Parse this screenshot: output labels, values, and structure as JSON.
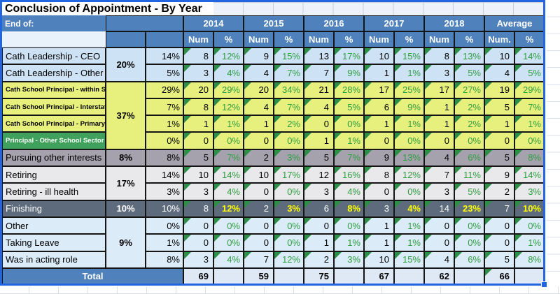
{
  "title": "Conclusion of Appointment -  By Year",
  "header": {
    "end_of_label": "End of:",
    "years": [
      "2014",
      "2015",
      "2016",
      "2017",
      "2018"
    ],
    "average_label": "Average",
    "num_label": "Num",
    "pct_label": "%",
    "avg_num_label": "Num.",
    "avg_pct_label": "%"
  },
  "groups": [
    {
      "pct": "20%",
      "start": 0,
      "span": 2,
      "style": "lightblue"
    },
    {
      "pct": "37%",
      "start": 2,
      "span": 4,
      "style": "yellow"
    },
    {
      "pct": "8%",
      "start": 6,
      "span": 1,
      "style": "gray"
    },
    {
      "pct": "17%",
      "start": 7,
      "span": 2,
      "style": "lightgray"
    },
    {
      "pct": "10%",
      "start": 9,
      "span": 1,
      "style": "dark"
    },
    {
      "pct": "9%",
      "start": 10,
      "span": 3,
      "style": "lightblue2"
    }
  ],
  "rows": [
    {
      "label": "Cath Leadership - CEO",
      "style": "lightblue",
      "row_pct": "14%",
      "values": [
        [
          "8",
          "12%"
        ],
        [
          "9",
          "15%"
        ],
        [
          "13",
          "17%"
        ],
        [
          "10",
          "15%"
        ],
        [
          "8",
          "13%"
        ],
        [
          "10",
          "14%"
        ]
      ]
    },
    {
      "label": "Cath Leadership - Other",
      "style": "lightblue",
      "row_pct": "5%",
      "values": [
        [
          "3",
          "4%"
        ],
        [
          "4",
          "7%"
        ],
        [
          "7",
          "9%"
        ],
        [
          "1",
          "1%"
        ],
        [
          "3",
          "5%"
        ],
        [
          "4",
          "5%"
        ]
      ]
    },
    {
      "label": "Cath School Principal - within State",
      "style": "yellow",
      "row_pct": "29%",
      "values": [
        [
          "20",
          "29%"
        ],
        [
          "20",
          "34%"
        ],
        [
          "21",
          "28%"
        ],
        [
          "17",
          "25%"
        ],
        [
          "17",
          "27%"
        ],
        [
          "19",
          "29%"
        ]
      ]
    },
    {
      "label": "Cath School Principal - Interstate",
      "style": "yellow",
      "row_pct": "7%",
      "values": [
        [
          "8",
          "12%"
        ],
        [
          "4",
          "7%"
        ],
        [
          "4",
          "5%"
        ],
        [
          "6",
          "9%"
        ],
        [
          "1",
          "2%"
        ],
        [
          "5",
          "7%"
        ]
      ]
    },
    {
      "label": "Cath School Principal - Primary",
      "style": "yellow",
      "row_pct": "1%",
      "values": [
        [
          "1",
          "1%"
        ],
        [
          "1",
          "2%"
        ],
        [
          "0",
          "0%"
        ],
        [
          "1",
          "1%"
        ],
        [
          "1",
          "2%"
        ],
        [
          "1",
          "1%"
        ]
      ]
    },
    {
      "label": "Principal - Other School Sector",
      "style": "green",
      "row_pct": "0%",
      "values": [
        [
          "0",
          "0%"
        ],
        [
          "0",
          "0%"
        ],
        [
          "1",
          "1%"
        ],
        [
          "0",
          "0%"
        ],
        [
          "0",
          "0%"
        ],
        [
          "0",
          "0%"
        ]
      ]
    },
    {
      "label": "Pursuing other interests",
      "style": "gray",
      "row_pct": "8%",
      "values": [
        [
          "5",
          "7%"
        ],
        [
          "2",
          "3%"
        ],
        [
          "5",
          "7%"
        ],
        [
          "9",
          "13%"
        ],
        [
          "4",
          "6%"
        ],
        [
          "5",
          "8%"
        ]
      ]
    },
    {
      "label": "Retiring",
      "style": "lightgray",
      "row_pct": "14%",
      "values": [
        [
          "10",
          "14%"
        ],
        [
          "10",
          "17%"
        ],
        [
          "12",
          "16%"
        ],
        [
          "8",
          "12%"
        ],
        [
          "7",
          "11%"
        ],
        [
          "9",
          "14%"
        ]
      ]
    },
    {
      "label": "Retiring - ill health",
      "style": "lightgray",
      "row_pct": "3%",
      "values": [
        [
          "3",
          "4%"
        ],
        [
          "0",
          "0%"
        ],
        [
          "3",
          "4%"
        ],
        [
          "0",
          "0%"
        ],
        [
          "3",
          "5%"
        ],
        [
          "2",
          "3%"
        ]
      ]
    },
    {
      "label": "Finishing",
      "style": "dark",
      "row_pct": "10%",
      "values": [
        [
          "8",
          "12%"
        ],
        [
          "2",
          "3%"
        ],
        [
          "6",
          "8%"
        ],
        [
          "3",
          "4%"
        ],
        [
          "14",
          "23%"
        ],
        [
          "7",
          "10%"
        ]
      ]
    },
    {
      "label": "Other",
      "style": "lightblue2",
      "row_pct": "0%",
      "values": [
        [
          "0",
          "0%"
        ],
        [
          "0",
          "0%"
        ],
        [
          "0",
          "0%"
        ],
        [
          "1",
          "1%"
        ],
        [
          "0",
          "0%"
        ],
        [
          "0",
          "0%"
        ]
      ]
    },
    {
      "label": "Taking Leave",
      "style": "lightblue2",
      "row_pct": "1%",
      "values": [
        [
          "0",
          "0%"
        ],
        [
          "0",
          "0%"
        ],
        [
          "1",
          "1%"
        ],
        [
          "1",
          "1%"
        ],
        [
          "0",
          "0%"
        ],
        [
          "0",
          "1%"
        ]
      ]
    },
    {
      "label": "Was in acting role",
      "style": "lightblue2",
      "row_pct": "8%",
      "values": [
        [
          "3",
          "4%"
        ],
        [
          "7",
          "12%"
        ],
        [
          "2",
          "3%"
        ],
        [
          "10",
          "15%"
        ],
        [
          "4",
          "6%"
        ],
        [
          "5",
          "8%"
        ]
      ]
    }
  ],
  "total": {
    "label": "Total",
    "values": [
      "69",
      "59",
      "75",
      "67",
      "62",
      "66"
    ]
  },
  "colors": {
    "header_blue": "#4f81bd",
    "light_blue": "#cde2f4",
    "light_blue_2": "#dcebf8",
    "yellow": "#e7ef7d",
    "green_row": "#3fa15b",
    "gray_row": "#a5a2ad",
    "light_gray_row": "#e9e8ea",
    "dark_row": "#5d6b7d",
    "pct_text_green": "#2f9e41",
    "pct_text_yellow": "#ffff00",
    "flag_triangle_green": "#2e9048",
    "selection_blue": "#2166e0"
  }
}
